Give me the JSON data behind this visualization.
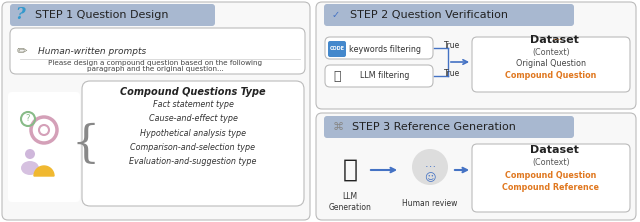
{
  "bg_color": "#ffffff",
  "step_banner_color": "#a8b8d0",
  "arrow_color": "#4472c4",
  "orange_color": "#e07820",
  "text_dark": "#222222",
  "text_medium": "#444444",
  "step1_title": "STEP 1 Question Design",
  "step2_title": "STEP 2 Question Verification",
  "step3_title": "STEP 3 Reference Generation",
  "prompt_label": "Human-written prompts",
  "prompt_text": "Please design a compound question based on the following\nparagraph and the original question...",
  "cq_title": "Compound Questions Type",
  "cq_types": [
    "Fact statement type",
    "Cause-and-effect type",
    "Hypothetical analysis type",
    "Comparison-and-selection type",
    "Evaluation-and-suggestion type"
  ],
  "kw_label": "keywords filtering",
  "llm_label": "LLM filtering",
  "true1": "True",
  "true2": "True",
  "dataset_label": "Dataset",
  "ds1_line1": "(Context)",
  "ds1_line2": "Original Question",
  "ds1_line3": "Compound Question",
  "llm_gen_label": "LLM\nGeneration",
  "human_review_label": "Human review",
  "ds2_line1": "(Context)",
  "ds2_line2": "Compound Question",
  "ds2_line3": "Compound Reference"
}
